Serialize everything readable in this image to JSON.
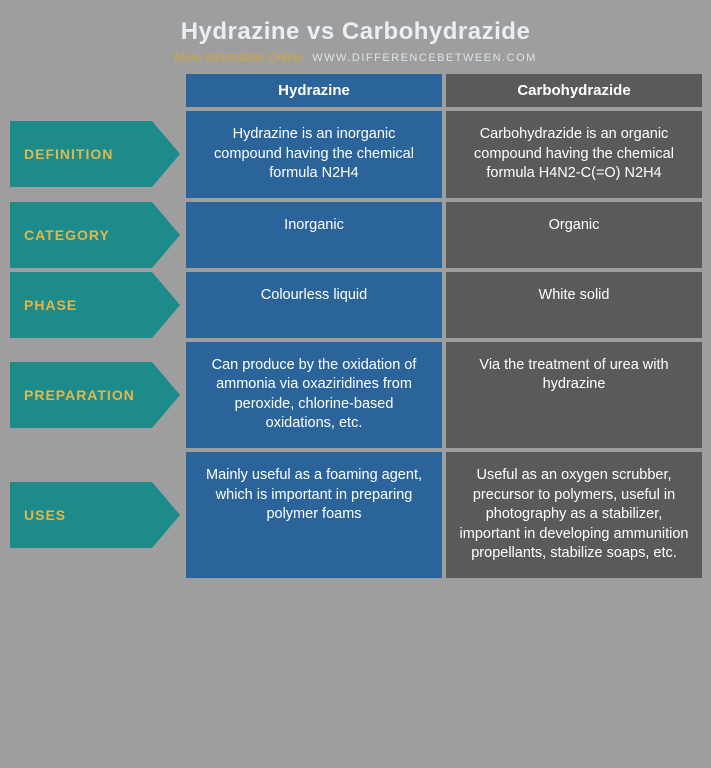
{
  "title": "Hydrazine vs Carbohydrazide",
  "more_info": "More Information Online",
  "site_url": "WWW.DIFFERENCEBETWEEN.COM",
  "columns": {
    "left": "Hydrazine",
    "right": "Carbohydrazide"
  },
  "colors": {
    "bg": "#9e9e9e",
    "label_bg": "#1e8b8b",
    "label_text": "#e0b84a",
    "left_col": "#2b649a",
    "right_col": "#5a5a5a",
    "title_text": "#e8f0f5",
    "more_info_text": "#d4a53a",
    "url_text": "#d8e4ea",
    "cell_text": "#ffffff"
  },
  "rows": [
    {
      "label": "DEFINITION",
      "left": "Hydrazine is an inorganic compound having the chemical formula N2H4",
      "right": "Carbohydrazide is an organic compound having the chemical formula H4N2-C(=O) N2H4"
    },
    {
      "label": "CATEGORY",
      "left": "Inorganic",
      "right": "Organic"
    },
    {
      "label": "PHASE",
      "left": "Colourless liquid",
      "right": "White solid"
    },
    {
      "label": "PREPARATION",
      "left": "Can produce by the oxidation of ammonia via oxaziridines from peroxide, chlorine-based oxidations, etc.",
      "right": "Via the treatment of urea with hydrazine"
    },
    {
      "label": "USES",
      "left": "Mainly useful as a foaming agent, which is important in preparing polymer foams",
      "right": "Useful as an oxygen scrubber, precursor to polymers, useful in photography as a stabilizer, important in developing ammunition propellants, stabilize soaps, etc."
    }
  ]
}
